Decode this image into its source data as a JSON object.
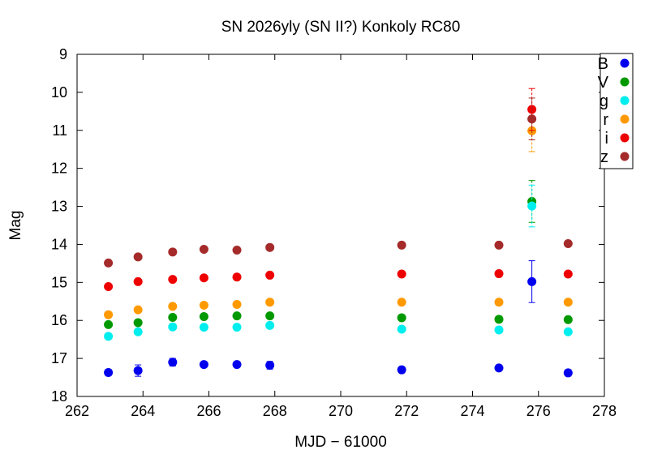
{
  "chart_data": {
    "type": "scatter",
    "title": "SN 2026yly (SN II?) Konkoly RC80",
    "xlabel": "MJD − 61000",
    "ylabel": "Mag",
    "xlim": [
      262,
      278
    ],
    "ylim": [
      18,
      9
    ],
    "y_inverted": true,
    "x_ticks": [
      "262",
      "264",
      "266",
      "268",
      "270",
      "272",
      "274",
      "276",
      "278"
    ],
    "y_ticks": [
      "9",
      "10",
      "11",
      "12",
      "13",
      "14",
      "15",
      "16",
      "17",
      "18"
    ],
    "grid": false,
    "legend_position": "top-right",
    "series": [
      {
        "name": "B",
        "color": "#0000ee",
        "points": [
          {
            "x": 262.95,
            "y": 17.37,
            "err": 0.08
          },
          {
            "x": 263.85,
            "y": 17.32,
            "err": 0.15
          },
          {
            "x": 264.9,
            "y": 17.1,
            "err": 0.1
          },
          {
            "x": 265.85,
            "y": 17.16,
            "err": 0.07
          },
          {
            "x": 266.85,
            "y": 17.16,
            "err": 0.07
          },
          {
            "x": 267.85,
            "y": 17.18,
            "err": 0.1
          },
          {
            "x": 271.85,
            "y": 17.3,
            "err": 0.06
          },
          {
            "x": 274.8,
            "y": 17.25,
            "err": 0.06
          },
          {
            "x": 275.8,
            "y": 14.98,
            "err": 0.55
          },
          {
            "x": 276.9,
            "y": 17.38,
            "err": 0.08
          }
        ]
      },
      {
        "name": "V",
        "color": "#009900",
        "points": [
          {
            "x": 262.95,
            "y": 16.11,
            "err": 0.04
          },
          {
            "x": 263.85,
            "y": 16.06,
            "err": 0.04
          },
          {
            "x": 264.9,
            "y": 15.92,
            "err": 0.04
          },
          {
            "x": 265.85,
            "y": 15.9,
            "err": 0.04
          },
          {
            "x": 266.85,
            "y": 15.88,
            "err": 0.04
          },
          {
            "x": 267.85,
            "y": 15.88,
            "err": 0.04
          },
          {
            "x": 271.85,
            "y": 15.93,
            "err": 0.04
          },
          {
            "x": 274.8,
            "y": 15.97,
            "err": 0.04
          },
          {
            "x": 275.8,
            "y": 12.87,
            "err": 0.55
          },
          {
            "x": 276.9,
            "y": 15.98,
            "err": 0.04
          }
        ]
      },
      {
        "name": "g",
        "color": "#00eeee",
        "points": [
          {
            "x": 262.95,
            "y": 16.42,
            "err": 0.04
          },
          {
            "x": 263.85,
            "y": 16.3,
            "err": 0.04
          },
          {
            "x": 264.9,
            "y": 16.17,
            "err": 0.04
          },
          {
            "x": 265.85,
            "y": 16.18,
            "err": 0.04
          },
          {
            "x": 266.85,
            "y": 16.18,
            "err": 0.04
          },
          {
            "x": 267.85,
            "y": 16.13,
            "err": 0.04
          },
          {
            "x": 271.85,
            "y": 16.23,
            "err": 0.04
          },
          {
            "x": 274.8,
            "y": 16.25,
            "err": 0.04
          },
          {
            "x": 275.8,
            "y": 12.99,
            "err": 0.55
          },
          {
            "x": 276.9,
            "y": 16.3,
            "err": 0.04
          }
        ]
      },
      {
        "name": "r",
        "color": "#ff9900",
        "points": [
          {
            "x": 262.95,
            "y": 15.85,
            "err": 0.04
          },
          {
            "x": 263.85,
            "y": 15.72,
            "err": 0.04
          },
          {
            "x": 264.9,
            "y": 15.63,
            "err": 0.04
          },
          {
            "x": 265.85,
            "y": 15.6,
            "err": 0.04
          },
          {
            "x": 266.85,
            "y": 15.58,
            "err": 0.04
          },
          {
            "x": 267.85,
            "y": 15.52,
            "err": 0.04
          },
          {
            "x": 271.85,
            "y": 15.52,
            "err": 0.04
          },
          {
            "x": 274.8,
            "y": 15.52,
            "err": 0.04
          },
          {
            "x": 275.8,
            "y": 11.01,
            "err": 0.55
          },
          {
            "x": 276.9,
            "y": 15.52,
            "err": 0.04
          }
        ]
      },
      {
        "name": "i",
        "color": "#ee0000",
        "points": [
          {
            "x": 262.95,
            "y": 15.11,
            "err": 0.04
          },
          {
            "x": 263.85,
            "y": 14.98,
            "err": 0.04
          },
          {
            "x": 264.9,
            "y": 14.92,
            "err": 0.04
          },
          {
            "x": 265.85,
            "y": 14.88,
            "err": 0.04
          },
          {
            "x": 266.85,
            "y": 14.86,
            "err": 0.04
          },
          {
            "x": 267.85,
            "y": 14.81,
            "err": 0.04
          },
          {
            "x": 271.85,
            "y": 14.78,
            "err": 0.04
          },
          {
            "x": 274.8,
            "y": 14.77,
            "err": 0.04
          },
          {
            "x": 275.8,
            "y": 10.45,
            "err": 0.55
          },
          {
            "x": 276.9,
            "y": 14.78,
            "err": 0.04
          }
        ]
      },
      {
        "name": "z",
        "color": "#a52a2a",
        "points": [
          {
            "x": 262.95,
            "y": 14.49,
            "err": 0.04
          },
          {
            "x": 263.85,
            "y": 14.33,
            "err": 0.04
          },
          {
            "x": 264.9,
            "y": 14.2,
            "err": 0.04
          },
          {
            "x": 265.85,
            "y": 14.13,
            "err": 0.04
          },
          {
            "x": 266.85,
            "y": 14.15,
            "err": 0.04
          },
          {
            "x": 267.85,
            "y": 14.08,
            "err": 0.04
          },
          {
            "x": 271.85,
            "y": 14.02,
            "err": 0.04
          },
          {
            "x": 274.8,
            "y": 14.02,
            "err": 0.04
          },
          {
            "x": 275.8,
            "y": 10.7,
            "err": 0.55
          },
          {
            "x": 276.9,
            "y": 13.98,
            "err": 0.04
          }
        ]
      }
    ]
  }
}
